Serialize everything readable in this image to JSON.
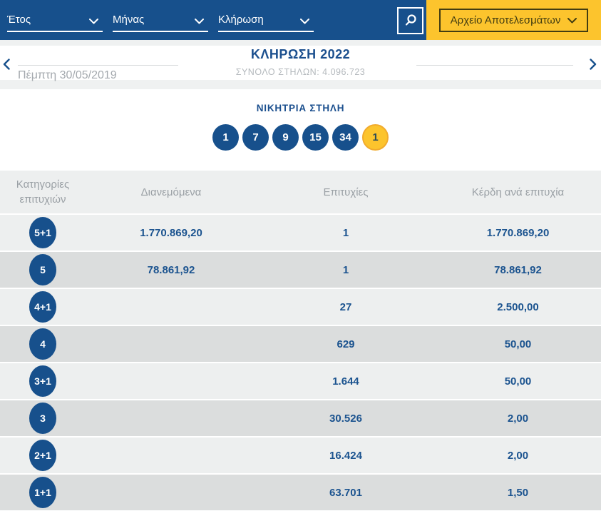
{
  "colors": {
    "bar_blue": "#17508c",
    "text_blue": "#1b538f",
    "accent_yellow": "#fcc42d",
    "row_light": "#edefef",
    "row_dark": "#dbdddd",
    "muted_gray": "#9aa0a5"
  },
  "filter_bar": {
    "dropdowns": [
      {
        "label": "Έτος"
      },
      {
        "label": "Μήνας"
      },
      {
        "label": "Κλήρωση"
      }
    ],
    "search_icon": "magnifier-icon",
    "archive_button_label": "Αρχείο Αποτελεσμάτων"
  },
  "draw_header": {
    "date": "Πέμπτη 30/05/2019",
    "title": "ΚΛΗΡΩΣΗ 2022",
    "subtitle": "ΣΥΝΟΛΟ ΣΤΗΛΩΝ: 4.096.723"
  },
  "winning_column": {
    "title": "ΝΙΚΗΤΡΙΑ ΣΤΗΛΗ",
    "numbers": [
      "1",
      "7",
      "9",
      "15",
      "34"
    ],
    "joker": "1"
  },
  "table": {
    "headers": [
      "Κατηγορίες επιτυχιών",
      "Διανεμόμενα",
      "Επιτυχίες",
      "Κέρδη ανά επιτυχία"
    ],
    "rows": [
      {
        "category": "5+1",
        "distributed": "1.770.869,20",
        "wins": "1",
        "per_win": "1.770.869,20"
      },
      {
        "category": "5",
        "distributed": "78.861,92",
        "wins": "1",
        "per_win": "78.861,92"
      },
      {
        "category": "4+1",
        "distributed": "",
        "wins": "27",
        "per_win": "2.500,00"
      },
      {
        "category": "4",
        "distributed": "",
        "wins": "629",
        "per_win": "50,00"
      },
      {
        "category": "3+1",
        "distributed": "",
        "wins": "1.644",
        "per_win": "50,00"
      },
      {
        "category": "3",
        "distributed": "",
        "wins": "30.526",
        "per_win": "2,00"
      },
      {
        "category": "2+1",
        "distributed": "",
        "wins": "16.424",
        "per_win": "2,00"
      },
      {
        "category": "1+1",
        "distributed": "",
        "wins": "63.701",
        "per_win": "1,50"
      }
    ]
  }
}
